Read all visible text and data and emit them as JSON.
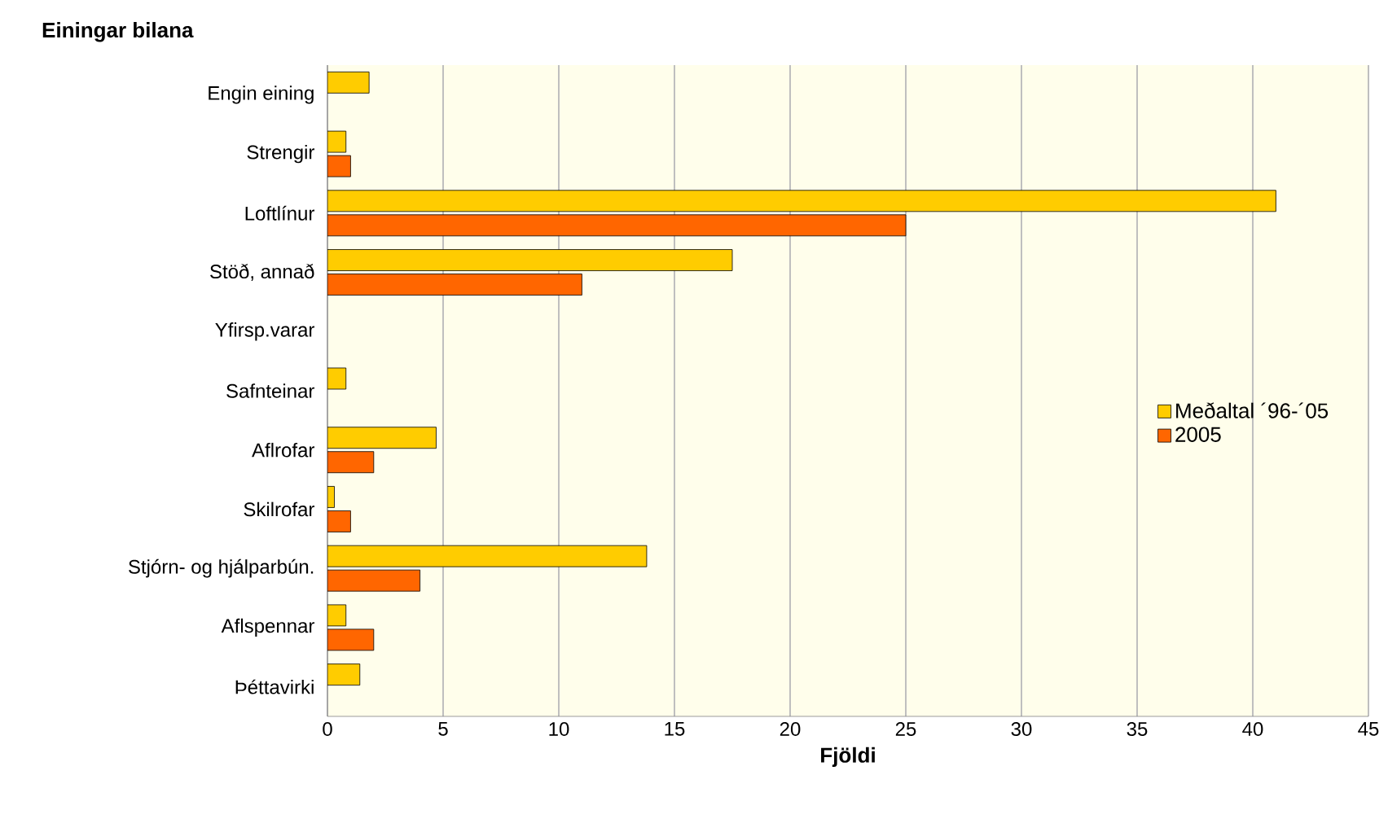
{
  "chart_data": {
    "type": "bar",
    "orientation": "horizontal",
    "title": "Einingar bilana",
    "xlabel": "Fjöldi",
    "categories": [
      "Engin eining",
      "Strengir",
      "Loftlínur",
      "Stöð, annað",
      "Yfirsp.varar",
      "Safnteinar",
      "Aflrofar",
      "Skilrofar",
      "Stjórn- og hjálparbún.",
      "Aflspennar",
      "Þéttavirki"
    ],
    "series": [
      {
        "name": "Meðaltal ´96-´05",
        "color": "#ffcc00",
        "values": [
          1.8,
          0.8,
          41,
          17.5,
          0,
          0.8,
          4.7,
          0.3,
          13.8,
          0.8,
          1.4
        ]
      },
      {
        "name": "2005",
        "color": "#ff6600",
        "values": [
          0,
          1,
          25,
          11,
          0,
          0,
          2,
          1,
          4,
          2,
          0
        ]
      }
    ],
    "xlim": [
      0,
      45
    ],
    "xticks": [
      0,
      5,
      10,
      15,
      20,
      25,
      30,
      35,
      40,
      45
    ],
    "grid": "x",
    "legend": "right"
  }
}
